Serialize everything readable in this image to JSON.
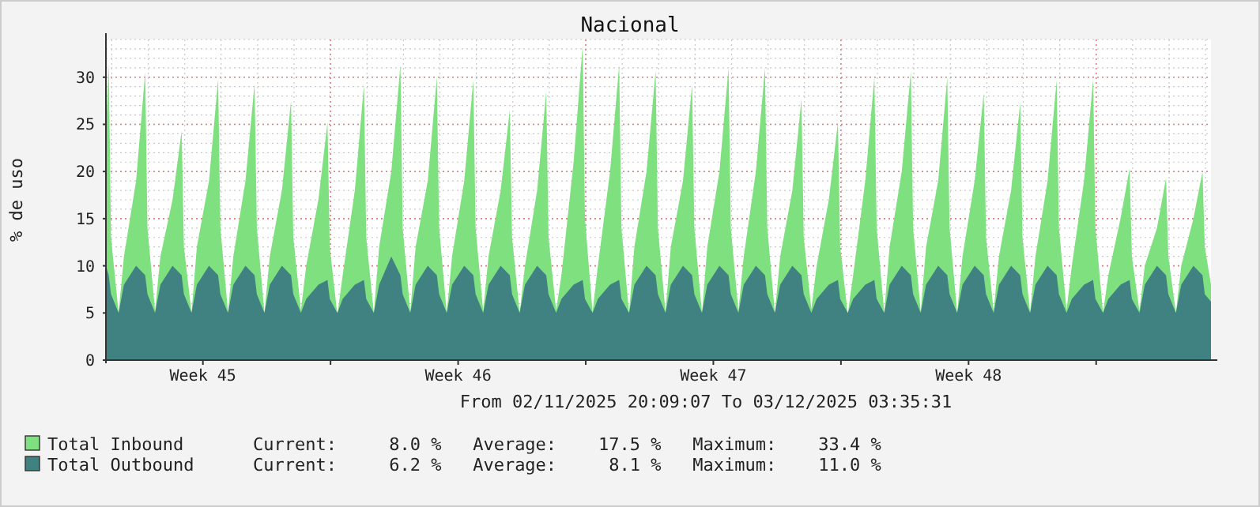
{
  "chart_data": {
    "type": "area",
    "title": "Nacional",
    "ylabel": "% de uso",
    "legend": "bottom",
    "grid": true,
    "xlim": [
      "2025-11-02T20:09",
      "2025-12-03T03:35"
    ],
    "xticks": [
      {
        "value": "2025-11-05T12:00",
        "label": "Week 45"
      },
      {
        "value": "2025-11-09T00:00",
        "label": null
      },
      {
        "value": "2025-11-12T12:00",
        "label": "Week 46"
      },
      {
        "value": "2025-11-16T00:00",
        "label": null
      },
      {
        "value": "2025-11-19T12:00",
        "label": "Week 47"
      },
      {
        "value": "2025-11-23T00:00",
        "label": null
      },
      {
        "value": "2025-11-26T12:00",
        "label": "Week 48"
      },
      {
        "value": "2025-11-30T00:00",
        "label": null
      }
    ],
    "ylim": [
      0,
      34
    ],
    "yticks": [
      0,
      5,
      10,
      15,
      20,
      25,
      30
    ],
    "annotations": [
      "From 02/11/2025 20:09:07 To 03/12/2025 03:35:31",
      "Current:     8.0 %   Average:    17.5 %   Maximum:    33.4 %",
      "Current:     6.2 %   Average:     8.1 %   Maximum:    11.0 %"
    ],
    "x": [
      "2025-11-02T20:09",
      "2025-11-02T22:00",
      "2025-11-02T23:30",
      "2025-11-03T04:30",
      "2025-11-03T08:00",
      "2025-11-03T16:00",
      "2025-11-03T22:00",
      "2025-11-03T23:30",
      "2025-11-04T04:30",
      "2025-11-04T08:00",
      "2025-11-04T16:00",
      "2025-11-04T22:00",
      "2025-11-04T23:30",
      "2025-11-05T04:30",
      "2025-11-05T08:00",
      "2025-11-05T16:00",
      "2025-11-05T22:00",
      "2025-11-05T23:30",
      "2025-11-06T04:30",
      "2025-11-06T08:00",
      "2025-11-06T16:00",
      "2025-11-06T22:00",
      "2025-11-06T23:30",
      "2025-11-07T04:30",
      "2025-11-07T08:00",
      "2025-11-07T16:00",
      "2025-11-07T22:00",
      "2025-11-07T23:30",
      "2025-11-08T04:30",
      "2025-11-08T08:00",
      "2025-11-08T16:00",
      "2025-11-08T22:00",
      "2025-11-08T23:30",
      "2025-11-09T04:30",
      "2025-11-09T08:00",
      "2025-11-09T16:00",
      "2025-11-09T22:00",
      "2025-11-09T23:30",
      "2025-11-10T04:30",
      "2025-11-10T08:00",
      "2025-11-10T16:00",
      "2025-11-10T22:00",
      "2025-11-10T23:30",
      "2025-11-11T04:30",
      "2025-11-11T08:00",
      "2025-11-11T16:00",
      "2025-11-11T22:00",
      "2025-11-11T23:30",
      "2025-11-12T04:30",
      "2025-11-12T08:00",
      "2025-11-12T16:00",
      "2025-11-12T22:00",
      "2025-11-12T23:30",
      "2025-11-13T04:30",
      "2025-11-13T08:00",
      "2025-11-13T16:00",
      "2025-11-13T22:00",
      "2025-11-13T23:30",
      "2025-11-14T04:30",
      "2025-11-14T08:00",
      "2025-11-14T16:00",
      "2025-11-14T22:00",
      "2025-11-14T23:30",
      "2025-11-15T04:30",
      "2025-11-15T08:00",
      "2025-11-15T16:00",
      "2025-11-15T22:00",
      "2025-11-15T23:30",
      "2025-11-16T04:30",
      "2025-11-16T08:00",
      "2025-11-16T16:00",
      "2025-11-16T22:00",
      "2025-11-16T23:30",
      "2025-11-17T04:30",
      "2025-11-17T08:00",
      "2025-11-17T16:00",
      "2025-11-17T22:00",
      "2025-11-17T23:30",
      "2025-11-18T04:30",
      "2025-11-18T08:00",
      "2025-11-18T16:00",
      "2025-11-18T22:00",
      "2025-11-18T23:30",
      "2025-11-19T04:30",
      "2025-11-19T08:00",
      "2025-11-19T16:00",
      "2025-11-19T22:00",
      "2025-11-19T23:30",
      "2025-11-20T04:30",
      "2025-11-20T08:00",
      "2025-11-20T16:00",
      "2025-11-20T22:00",
      "2025-11-20T23:30",
      "2025-11-21T04:30",
      "2025-11-21T08:00",
      "2025-11-21T16:00",
      "2025-11-21T22:00",
      "2025-11-21T23:30",
      "2025-11-22T04:30",
      "2025-11-22T08:00",
      "2025-11-22T16:00",
      "2025-11-22T22:00",
      "2025-11-22T23:30",
      "2025-11-23T04:30",
      "2025-11-23T08:00",
      "2025-11-23T16:00",
      "2025-11-23T22:00",
      "2025-11-23T23:30",
      "2025-11-24T04:30",
      "2025-11-24T08:00",
      "2025-11-24T16:00",
      "2025-11-24T22:00",
      "2025-11-24T23:30",
      "2025-11-25T04:30",
      "2025-11-25T08:00",
      "2025-11-25T16:00",
      "2025-11-25T22:00",
      "2025-11-25T23:30",
      "2025-11-26T04:30",
      "2025-11-26T08:00",
      "2025-11-26T16:00",
      "2025-11-26T22:00",
      "2025-11-26T23:30",
      "2025-11-27T04:30",
      "2025-11-27T08:00",
      "2025-11-27T16:00",
      "2025-11-27T22:00",
      "2025-11-27T23:30",
      "2025-11-28T04:30",
      "2025-11-28T08:00",
      "2025-11-28T16:00",
      "2025-11-28T22:00",
      "2025-11-28T23:30",
      "2025-11-29T04:30",
      "2025-11-29T08:00",
      "2025-11-29T16:00",
      "2025-11-29T22:00",
      "2025-11-29T23:30",
      "2025-11-30T04:30",
      "2025-11-30T08:00",
      "2025-11-30T16:00",
      "2025-11-30T22:00",
      "2025-11-30T23:30",
      "2025-12-01T04:30",
      "2025-12-01T08:00",
      "2025-12-01T16:00",
      "2025-12-01T22:00",
      "2025-12-01T23:30",
      "2025-12-02T04:30",
      "2025-12-02T08:00",
      "2025-12-02T16:00",
      "2025-12-02T22:00",
      "2025-12-02T23:30",
      "2025-12-03T03:35"
    ],
    "series": [
      {
        "name": "Total Inbound",
        "color": "#7ee07e",
        "values": [
          24,
          31.5,
          13,
          5.0,
          11,
          19,
          30.5,
          14,
          5.2,
          11,
          17,
          24.3,
          12,
          5.0,
          12,
          19,
          29.8,
          14,
          5.1,
          11,
          19,
          29.3,
          14,
          5.0,
          11,
          18,
          27.5,
          13,
          5.3,
          10,
          17,
          25.2,
          12,
          4.8,
          9,
          18,
          29.2,
          13,
          5.0,
          12,
          20,
          31.3,
          14,
          5.1,
          12,
          19,
          30,
          14,
          5.0,
          11,
          19,
          29.7,
          14,
          5.2,
          11,
          18,
          26.5,
          13,
          5.0,
          10,
          18,
          28.5,
          13,
          5.3,
          9,
          21,
          33.4,
          15,
          5.1,
          10,
          20,
          31.3,
          14,
          5.0,
          12,
          20,
          30.7,
          14,
          5.1,
          12,
          19,
          29.2,
          14,
          5.0,
          12,
          20,
          31,
          14,
          5.2,
          11,
          20,
          31,
          14,
          5.0,
          11,
          18,
          27.7,
          13,
          5.4,
          10,
          17,
          25.2,
          12,
          4.9,
          9,
          19,
          30,
          14,
          5.0,
          12,
          20,
          30.6,
          14,
          5.1,
          12,
          19,
          30,
          14,
          5.0,
          11,
          19,
          28.3,
          13,
          5.2,
          11,
          18,
          27.3,
          13,
          5.0,
          11,
          19,
          29.7,
          14,
          5.3,
          10,
          19,
          29.8,
          14,
          5.0,
          9,
          15,
          20.3,
          11,
          5.2,
          10,
          14,
          19.3,
          11,
          5.0,
          10,
          15,
          20,
          12,
          8.0
        ]
      },
      {
        "name": "Total Outbound",
        "color": "#408282",
        "values": [
          10,
          9,
          7,
          5.0,
          8,
          10,
          9,
          7,
          5.0,
          8,
          10,
          9,
          7,
          5.0,
          8,
          10,
          9,
          7,
          5.0,
          8,
          10,
          9,
          7,
          5.0,
          8,
          10,
          9,
          7,
          5.0,
          6.5,
          8,
          8.5,
          6.5,
          5.0,
          6.5,
          8,
          8.5,
          6.5,
          5.0,
          8,
          11.0,
          9,
          7,
          5.0,
          8,
          10,
          9,
          7,
          5.0,
          8,
          10,
          9,
          7,
          5.0,
          8,
          10,
          9,
          7,
          5.0,
          8,
          10,
          9,
          7,
          5.0,
          6.5,
          8,
          8.5,
          6.5,
          5.0,
          6.5,
          8,
          8.5,
          6.5,
          5.0,
          8,
          10,
          9,
          7,
          5.0,
          8,
          10,
          9,
          7,
          5.0,
          8,
          10,
          9,
          7,
          5.0,
          8,
          10,
          9,
          7,
          5.0,
          8,
          10,
          9,
          7,
          5.0,
          6.5,
          8,
          8.5,
          6.5,
          5.0,
          6.5,
          8,
          8.5,
          6.5,
          5.0,
          8,
          10,
          9,
          7,
          5.0,
          8,
          10,
          9,
          7,
          5.0,
          8,
          10,
          9,
          7,
          5.0,
          8,
          10,
          9,
          7,
          5.0,
          8,
          10,
          9,
          7,
          5.0,
          6.5,
          8,
          8.5,
          6.5,
          5.0,
          6.5,
          8,
          8.5,
          6.5,
          5.0,
          8,
          10,
          9,
          7,
          5.0,
          8,
          10,
          9,
          7,
          6.2
        ]
      }
    ]
  }
}
